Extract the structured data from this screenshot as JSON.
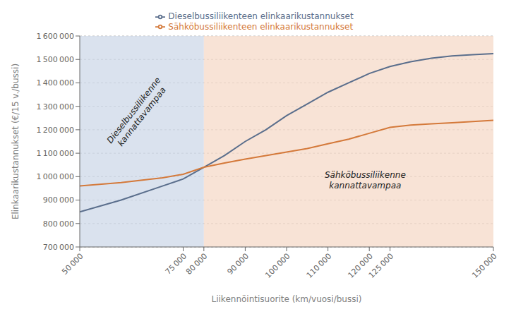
{
  "chart_data": {
    "type": "line",
    "x": [
      50000,
      60000,
      70000,
      75000,
      80000,
      85000,
      90000,
      95000,
      100000,
      105000,
      110000,
      115000,
      120000,
      125000,
      130000,
      135000,
      140000,
      145000,
      150000
    ],
    "series": [
      {
        "name": "Dieselbussiliikenteen elinkaarikustannukset",
        "color": "#5a6e8c",
        "values": [
          850000,
          900000,
          960000,
          990000,
          1040000,
          1090000,
          1150000,
          1200000,
          1260000,
          1310000,
          1360000,
          1400000,
          1440000,
          1470000,
          1490000,
          1505000,
          1515000,
          1520000,
          1525000
        ]
      },
      {
        "name": "Sähköbussiliikenteen elinkaarikustannukset",
        "color": "#d4793a",
        "values": [
          960000,
          975000,
          995000,
          1010000,
          1040000,
          1058000,
          1075000,
          1090000,
          1105000,
          1120000,
          1140000,
          1160000,
          1185000,
          1210000,
          1220000,
          1225000,
          1230000,
          1235000,
          1240000
        ]
      }
    ],
    "xlim": [
      50000,
      150000
    ],
    "ylim": [
      700000,
      1600000
    ],
    "xticks": [
      {
        "value": 50000,
        "label": "50 000"
      },
      {
        "value": 75000,
        "label": "75 000"
      },
      {
        "value": 80000,
        "label": "80 000"
      },
      {
        "value": 90000,
        "label": "90 000"
      },
      {
        "value": 100000,
        "label": "100 000"
      },
      {
        "value": 110000,
        "label": "110 000"
      },
      {
        "value": 120000,
        "label": "120 000"
      },
      {
        "value": 125000,
        "label": "125 000"
      },
      {
        "value": 150000,
        "label": "150 000"
      }
    ],
    "yticks": [
      {
        "value": 700000,
        "label": "700 000"
      },
      {
        "value": 800000,
        "label": "800 000"
      },
      {
        "value": 900000,
        "label": "900 000"
      },
      {
        "value": 1000000,
        "label": "1 000 000"
      },
      {
        "value": 1100000,
        "label": "1 100 000"
      },
      {
        "value": 1200000,
        "label": "1 200 000"
      },
      {
        "value": 1300000,
        "label": "1 300 000"
      },
      {
        "value": 1400000,
        "label": "1 400 000"
      },
      {
        "value": 1500000,
        "label": "1 500 000"
      },
      {
        "value": 1600000,
        "label": "1 600 000"
      }
    ],
    "xlabel": "Liikennöintisuorite (km/vuosi/bussi)",
    "ylabel": "Elinkaarikustannukset (€/15 v./bussi)",
    "regions": [
      {
        "x0": 50000,
        "x1": 80000,
        "color": "#cdd8e8"
      },
      {
        "x0": 80000,
        "x1": 150000,
        "color": "#f5d9c8"
      }
    ],
    "annotations": [
      {
        "text": "Dieselbussiliikenne\nkannattavampaa",
        "x": 64000,
        "y": 1270000
      },
      {
        "text": "Sähköbussiliikenne\nkannattavampaa",
        "x": 119000,
        "y": 985000
      }
    ],
    "grid": true,
    "legend": "top"
  }
}
